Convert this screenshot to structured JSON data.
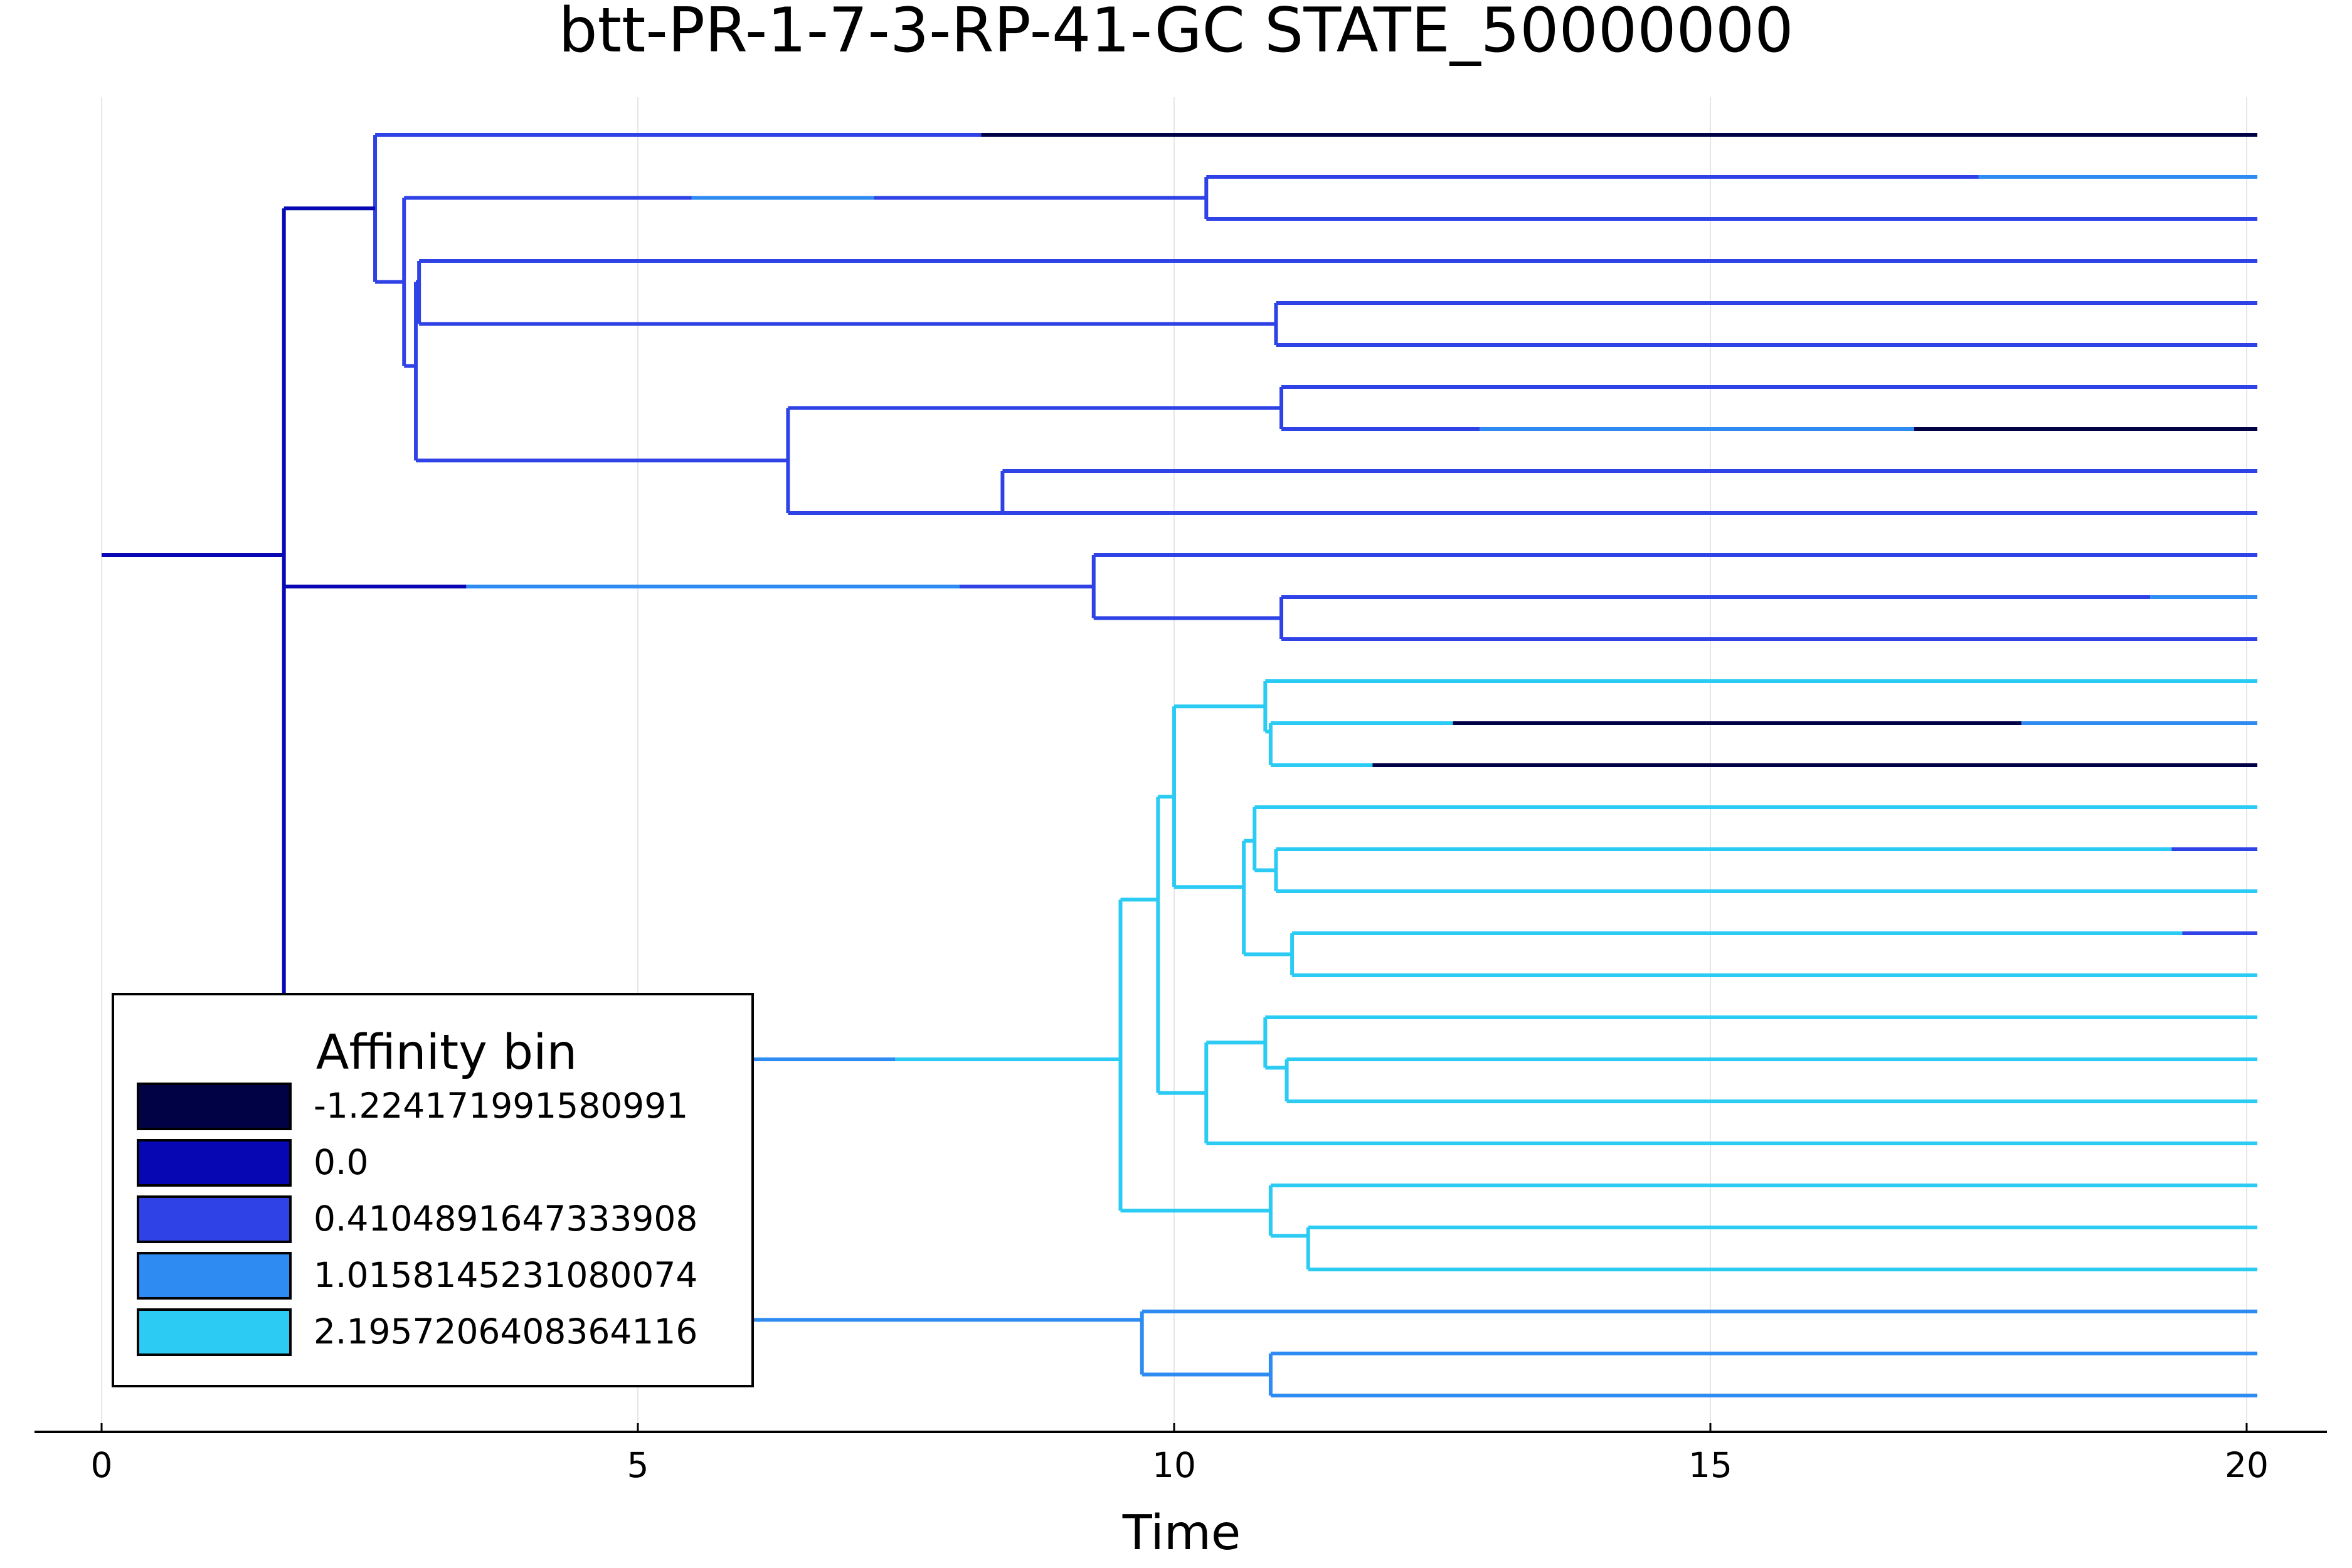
{
  "chart_data": {
    "type": "dendrogram",
    "title": "btt-PR-1-7-3-RP-41-GC STATE_50000000",
    "xlabel": "Time",
    "xlim": [
      0,
      20
    ],
    "xticks": [
      0,
      5,
      10,
      15,
      20
    ],
    "tick_labels": [
      "0",
      "5",
      "10",
      "15",
      "20"
    ],
    "grid": true,
    "legend": {
      "title": "Affinity bin",
      "placement": "bottom-left",
      "entries": [
        {
          "label": "-1.224171991580991",
          "color": "#010246"
        },
        {
          "label": "0.0",
          "color": "#0708b4"
        },
        {
          "label": "0.4104891647333908",
          "color": "#2f42e6"
        },
        {
          "label": "1.0158145231080074",
          "color": "#2e8bf1"
        },
        {
          "label": "2.1957206408364116",
          "color": "#2bcbf4"
        }
      ]
    },
    "leaf_count": 31,
    "edges": [
      {
        "row": 10,
        "segments": [
          [
            0,
            1.7,
            1
          ]
        ]
      },
      {
        "row": 1.75,
        "segments": [
          [
            1.7,
            2.55,
            1
          ]
        ]
      },
      {
        "row": 0,
        "segments": [
          [
            2.55,
            8.2,
            2
          ],
          [
            8.2,
            20.1,
            0
          ]
        ]
      },
      {
        "row": 3.5,
        "segments": [
          [
            2.55,
            2.82,
            2
          ]
        ]
      },
      {
        "row": 1.5,
        "segments": [
          [
            2.82,
            5.5,
            2
          ],
          [
            5.5,
            7.2,
            3
          ],
          [
            7.2,
            10.3,
            2
          ]
        ]
      },
      {
        "row": 1,
        "segments": [
          [
            10.3,
            17.5,
            2
          ],
          [
            17.5,
            20.1,
            3
          ]
        ]
      },
      {
        "row": 2,
        "segments": [
          [
            10.3,
            20.1,
            2
          ]
        ]
      },
      {
        "row": 5.5,
        "segments": [
          [
            2.82,
            2.93,
            2
          ]
        ]
      },
      {
        "row": 3.5,
        "segments": [
          [
            2.93,
            2.96,
            2
          ]
        ]
      },
      {
        "row": 3,
        "segments": [
          [
            2.96,
            20.1,
            2
          ]
        ]
      },
      {
        "row": 4.5,
        "segments": [
          [
            2.96,
            10.95,
            2
          ]
        ]
      },
      {
        "row": 4,
        "segments": [
          [
            10.95,
            20.1,
            2
          ]
        ]
      },
      {
        "row": 5,
        "segments": [
          [
            10.95,
            20.1,
            2
          ]
        ]
      },
      {
        "row": 7.75,
        "segments": [
          [
            2.93,
            6.4,
            2
          ]
        ]
      },
      {
        "row": 6.5,
        "segments": [
          [
            6.4,
            11.0,
            2
          ]
        ]
      },
      {
        "row": 6,
        "segments": [
          [
            11.0,
            20.1,
            2
          ]
        ]
      },
      {
        "row": 7,
        "segments": [
          [
            11.0,
            12.85,
            2
          ],
          [
            12.85,
            16.9,
            3
          ],
          [
            16.9,
            20.1,
            0
          ]
        ]
      },
      {
        "row": 9,
        "segments": [
          [
            6.4,
            8.4,
            2
          ]
        ]
      },
      {
        "row": 8,
        "segments": [
          [
            8.4,
            20.1,
            2
          ]
        ]
      },
      {
        "row": 9,
        "segments": [
          [
            8.4,
            20.1,
            2
          ]
        ]
      },
      {
        "row": 10.75,
        "segments": [
          [
            1.7,
            3.4,
            1
          ],
          [
            3.4,
            8.0,
            3
          ],
          [
            8.0,
            9.25,
            2
          ]
        ]
      },
      {
        "row": 10,
        "segments": [
          [
            9.25,
            20.1,
            2
          ]
        ]
      },
      {
        "row": 11.5,
        "segments": [
          [
            9.25,
            11.0,
            2
          ]
        ]
      },
      {
        "row": 11,
        "segments": [
          [
            11.0,
            19.1,
            2
          ],
          [
            19.1,
            20.1,
            3
          ]
        ]
      },
      {
        "row": 12,
        "segments": [
          [
            11.0,
            20.1,
            2
          ]
        ]
      },
      {
        "row": 22,
        "segments": [
          [
            1.7,
            5.9,
            3
          ],
          [
            5.9,
            7.4,
            3
          ],
          [
            7.4,
            9.5,
            4
          ]
        ]
      },
      {
        "row": 18.2,
        "segments": [
          [
            9.5,
            9.85,
            4
          ]
        ]
      },
      {
        "row": 15.75,
        "segments": [
          [
            9.85,
            10.0,
            4
          ]
        ]
      },
      {
        "row": 13.6,
        "segments": [
          [
            10.0,
            10.85,
            4
          ]
        ]
      },
      {
        "row": 13,
        "segments": [
          [
            10.85,
            20.1,
            4
          ]
        ]
      },
      {
        "row": 14.2,
        "segments": [
          [
            10.85,
            10.9,
            4
          ]
        ]
      },
      {
        "row": 14,
        "segments": [
          [
            10.9,
            12.6,
            4
          ],
          [
            12.6,
            17.9,
            0
          ],
          [
            17.9,
            20.1,
            3
          ]
        ]
      },
      {
        "row": 15,
        "segments": [
          [
            10.9,
            11.85,
            4
          ],
          [
            11.85,
            20.1,
            0
          ]
        ]
      },
      {
        "row": 17.9,
        "segments": [
          [
            10.0,
            10.65,
            4
          ]
        ]
      },
      {
        "row": 16.8,
        "segments": [
          [
            10.65,
            10.75,
            4
          ]
        ]
      },
      {
        "row": 16,
        "segments": [
          [
            10.75,
            20.1,
            4
          ]
        ]
      },
      {
        "row": 17.5,
        "segments": [
          [
            10.75,
            10.95,
            4
          ]
        ]
      },
      {
        "row": 17,
        "segments": [
          [
            10.95,
            19.3,
            4
          ],
          [
            19.3,
            20.1,
            2
          ]
        ]
      },
      {
        "row": 18,
        "segments": [
          [
            10.95,
            20.1,
            4
          ]
        ]
      },
      {
        "row": 19.5,
        "segments": [
          [
            10.65,
            11.1,
            4
          ]
        ]
      },
      {
        "row": 19,
        "segments": [
          [
            11.1,
            19.4,
            4
          ],
          [
            19.4,
            20.1,
            2
          ]
        ]
      },
      {
        "row": 20,
        "segments": [
          [
            11.1,
            20.1,
            4
          ]
        ]
      },
      {
        "row": 22.8,
        "segments": [
          [
            9.85,
            10.3,
            4
          ]
        ]
      },
      {
        "row": 21.6,
        "segments": [
          [
            10.3,
            10.85,
            4
          ]
        ]
      },
      {
        "row": 21,
        "segments": [
          [
            10.85,
            20.1,
            4
          ]
        ]
      },
      {
        "row": 22.2,
        "segments": [
          [
            10.85,
            11.05,
            4
          ]
        ]
      },
      {
        "row": 22,
        "segments": [
          [
            11.05,
            20.1,
            4
          ]
        ]
      },
      {
        "row": 23,
        "segments": [
          [
            11.05,
            20.1,
            4
          ]
        ]
      },
      {
        "row": 24,
        "segments": [
          [
            10.3,
            20.1,
            4
          ]
        ]
      },
      {
        "row": 25.6,
        "segments": [
          [
            9.5,
            10.9,
            4
          ]
        ]
      },
      {
        "row": 25,
        "segments": [
          [
            10.9,
            20.1,
            4
          ]
        ]
      },
      {
        "row": 26.2,
        "segments": [
          [
            10.9,
            11.25,
            4
          ]
        ]
      },
      {
        "row": 26,
        "segments": [
          [
            11.25,
            20.1,
            4
          ]
        ]
      },
      {
        "row": 27,
        "segments": [
          [
            11.25,
            20.1,
            4
          ]
        ]
      },
      {
        "row": 28.2,
        "segments": [
          [
            1.7,
            9.7,
            3
          ]
        ]
      },
      {
        "row": 28,
        "segments": [
          [
            9.7,
            20.1,
            3
          ]
        ]
      },
      {
        "row": 29.5,
        "segments": [
          [
            9.7,
            10.9,
            3
          ]
        ]
      },
      {
        "row": 29,
        "segments": [
          [
            10.9,
            20.1,
            3
          ]
        ]
      },
      {
        "row": 30,
        "segments": [
          [
            10.9,
            20.1,
            3
          ]
        ]
      }
    ],
    "connectors": [
      {
        "x": 1.7,
        "from": 1.75,
        "to": 28.2,
        "color": 1
      },
      {
        "x": 2.55,
        "from": 0,
        "to": 3.5,
        "color": 2
      },
      {
        "x": 2.82,
        "from": 1.5,
        "to": 5.5,
        "color": 2
      },
      {
        "x": 10.3,
        "from": 1,
        "to": 2,
        "color": 2
      },
      {
        "x": 2.93,
        "from": 3.5,
        "to": 7.75,
        "color": 2
      },
      {
        "x": 2.96,
        "from": 3,
        "to": 4.5,
        "color": 2
      },
      {
        "x": 10.95,
        "from": 4,
        "to": 5,
        "color": 2
      },
      {
        "x": 6.4,
        "from": 6.5,
        "to": 9,
        "color": 2
      },
      {
        "x": 11.0,
        "from": 6,
        "to": 7,
        "color": 2
      },
      {
        "x": 8.4,
        "from": 8,
        "to": 9,
        "color": 2
      },
      {
        "x": 9.25,
        "from": 10,
        "to": 11.5,
        "color": 2
      },
      {
        "x": 11.0,
        "from": 11,
        "to": 12,
        "color": 2
      },
      {
        "x": 9.5,
        "from": 18.2,
        "to": 25.6,
        "color": 4
      },
      {
        "x": 9.85,
        "from": 15.75,
        "to": 22.8,
        "color": 4
      },
      {
        "x": 10.0,
        "from": 13.6,
        "to": 17.9,
        "color": 4
      },
      {
        "x": 10.85,
        "from": 13,
        "to": 14.2,
        "color": 4
      },
      {
        "x": 10.9,
        "from": 14,
        "to": 15,
        "color": 4
      },
      {
        "x": 10.65,
        "from": 16.8,
        "to": 19.5,
        "color": 4
      },
      {
        "x": 10.75,
        "from": 16,
        "to": 17.5,
        "color": 4
      },
      {
        "x": 10.95,
        "from": 17,
        "to": 18,
        "color": 4
      },
      {
        "x": 11.1,
        "from": 19,
        "to": 20,
        "color": 4
      },
      {
        "x": 10.3,
        "from": 21.6,
        "to": 24,
        "color": 4
      },
      {
        "x": 10.85,
        "from": 21,
        "to": 22.2,
        "color": 4
      },
      {
        "x": 11.05,
        "from": 22,
        "to": 23,
        "color": 4
      },
      {
        "x": 10.9,
        "from": 25,
        "to": 26.2,
        "color": 4
      },
      {
        "x": 11.25,
        "from": 26,
        "to": 27,
        "color": 4
      },
      {
        "x": 9.7,
        "from": 28,
        "to": 29.5,
        "color": 3
      },
      {
        "x": 10.9,
        "from": 29,
        "to": 30,
        "color": 3
      }
    ]
  }
}
